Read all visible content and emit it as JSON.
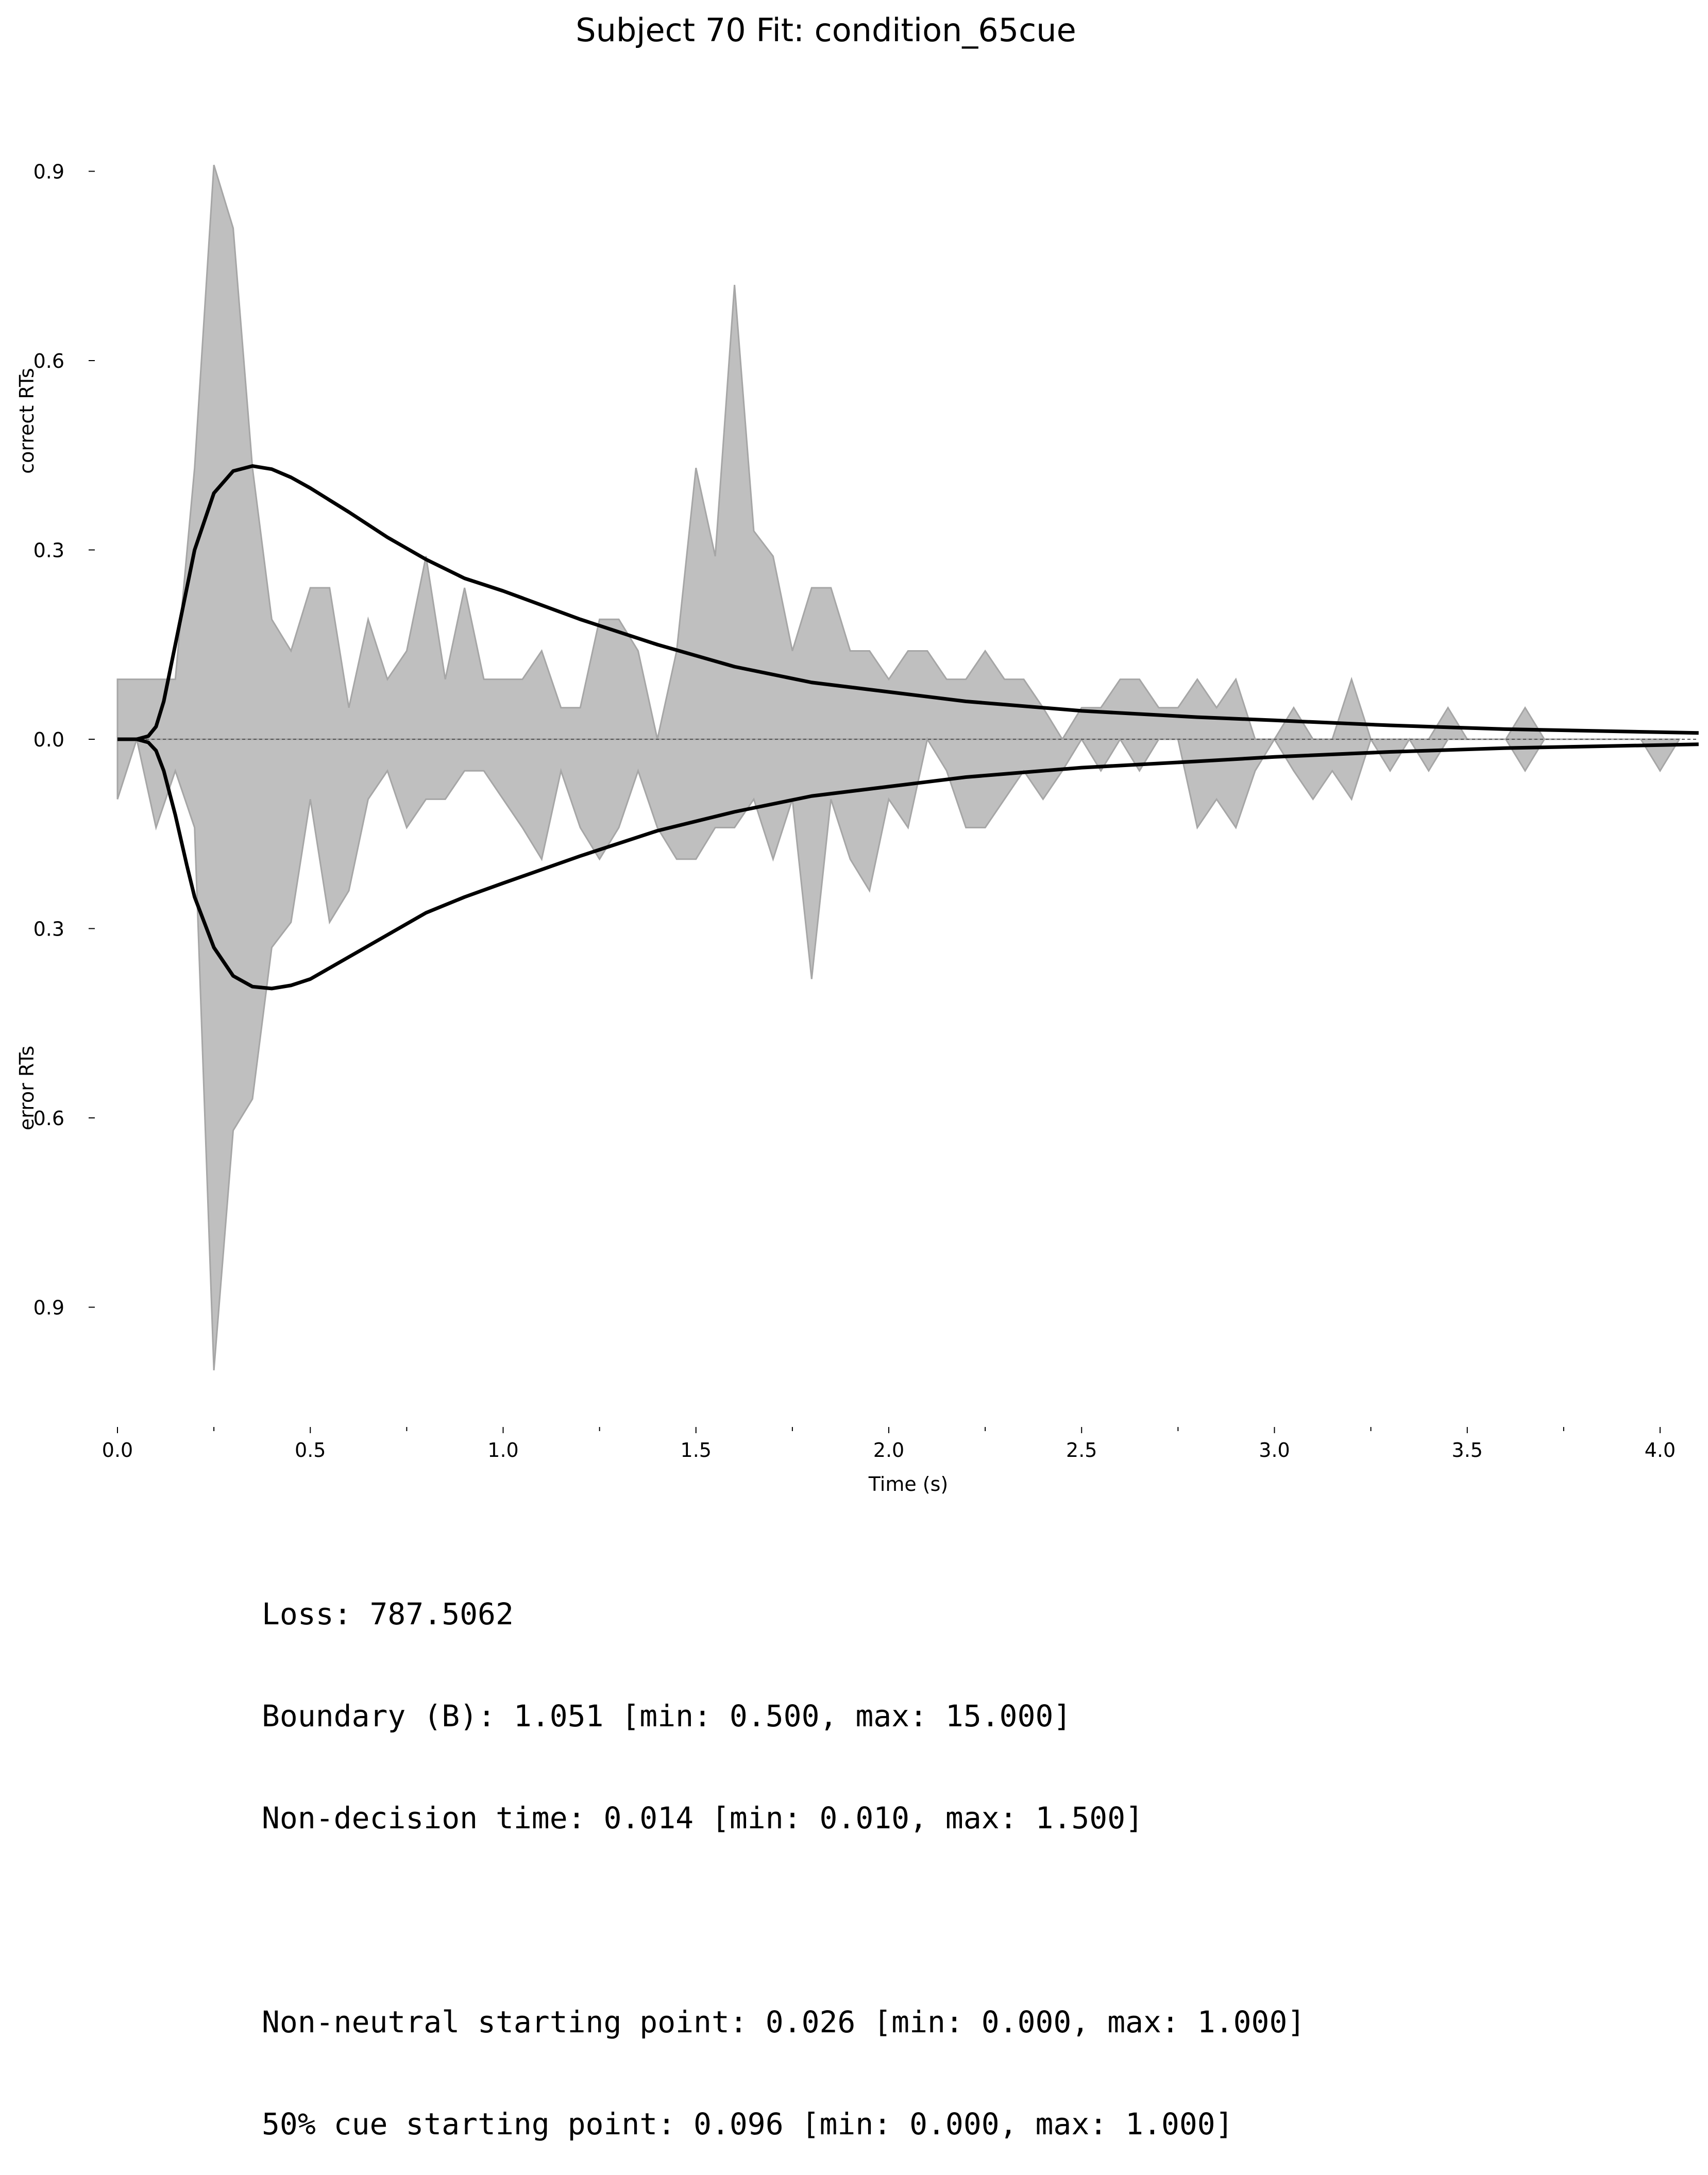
{
  "chart_data": {
    "type": "area",
    "title": "Subject 70 Fit: condition_65cue",
    "xlabel": "Time (s)",
    "ylabel_top": "correct RTs",
    "ylabel_bottom": "error RTs",
    "xlim": [
      0.0,
      4.1
    ],
    "ylim": [
      -1.08,
      1.05
    ],
    "x_tick_values": [
      0.0,
      0.5,
      1.0,
      1.5,
      2.0,
      2.5,
      3.0,
      3.5,
      4.0
    ],
    "x_tick_labels": [
      "0.0",
      "0.5",
      "1.0",
      "1.5",
      "2.0",
      "2.5",
      "3.0",
      "3.5",
      "4.0"
    ],
    "x_minor_ticks": [
      0.25,
      0.75,
      1.25,
      1.75,
      2.25,
      2.75,
      3.25,
      3.75
    ],
    "y_tick_values": [
      0.9,
      0.6,
      0.3,
      0.0,
      -0.3,
      -0.6,
      -0.9
    ],
    "y_tick_labels": [
      "0.9",
      "0.6",
      "0.3",
      "0.0",
      "0.3",
      "0.6",
      "0.9"
    ],
    "grid": false,
    "colors": {
      "histogram": "#bfbfbf",
      "histogram_edge": "#a6a6a6",
      "model": "#000000",
      "zero_line": "#555555"
    },
    "series": [
      {
        "name": "correct RT histogram",
        "x": [
          0.0,
          0.05,
          0.1,
          0.15,
          0.2,
          0.25,
          0.3,
          0.35,
          0.4,
          0.45,
          0.5,
          0.55,
          0.6,
          0.65,
          0.7,
          0.75,
          0.8,
          0.85,
          0.9,
          0.95,
          1.0,
          1.05,
          1.1,
          1.15,
          1.2,
          1.25,
          1.3,
          1.35,
          1.4,
          1.45,
          1.5,
          1.55,
          1.6,
          1.65,
          1.7,
          1.75,
          1.8,
          1.85,
          1.9,
          1.95,
          2.0,
          2.05,
          2.1,
          2.15,
          2.2,
          2.25,
          2.3,
          2.35,
          2.4,
          2.45,
          2.5,
          2.55,
          2.6,
          2.65,
          2.7,
          2.75,
          2.8,
          2.85,
          2.9,
          2.95,
          3.0,
          3.05,
          3.1,
          3.15,
          3.2,
          3.25,
          3.3,
          3.35,
          3.4,
          3.45,
          3.5,
          3.55,
          3.6,
          3.65,
          3.7,
          3.75,
          3.8,
          3.85,
          3.9,
          3.95,
          4.0,
          4.05
        ],
        "values": [
          0.095,
          0.095,
          0.095,
          0.095,
          0.43,
          0.91,
          0.81,
          0.43,
          0.19,
          0.14,
          0.24,
          0.24,
          0.05,
          0.19,
          0.095,
          0.14,
          0.29,
          0.095,
          0.24,
          0.095,
          0.095,
          0.095,
          0.14,
          0.05,
          0.05,
          0.19,
          0.19,
          0.14,
          0.0,
          0.14,
          0.43,
          0.29,
          0.72,
          0.33,
          0.29,
          0.14,
          0.24,
          0.24,
          0.14,
          0.14,
          0.095,
          0.14,
          0.14,
          0.095,
          0.095,
          0.14,
          0.095,
          0.095,
          0.05,
          0.0,
          0.05,
          0.05,
          0.095,
          0.095,
          0.05,
          0.05,
          0.095,
          0.05,
          0.095,
          0.0,
          0.0,
          0.05,
          0.0,
          0.0,
          0.095,
          0.0,
          0.0,
          0.0,
          0.0,
          0.05,
          0.0,
          0.0,
          0.0,
          0.05,
          0.0,
          0.0,
          0.0,
          0.0,
          0.0,
          0.0,
          0.0,
          0.0
        ]
      },
      {
        "name": "error RT histogram",
        "x": [
          0.0,
          0.05,
          0.1,
          0.15,
          0.2,
          0.25,
          0.3,
          0.35,
          0.4,
          0.45,
          0.5,
          0.55,
          0.6,
          0.65,
          0.7,
          0.75,
          0.8,
          0.85,
          0.9,
          0.95,
          1.0,
          1.05,
          1.1,
          1.15,
          1.2,
          1.25,
          1.3,
          1.35,
          1.4,
          1.45,
          1.5,
          1.55,
          1.6,
          1.65,
          1.7,
          1.75,
          1.8,
          1.85,
          1.9,
          1.95,
          2.0,
          2.05,
          2.1,
          2.15,
          2.2,
          2.25,
          2.3,
          2.35,
          2.4,
          2.45,
          2.5,
          2.55,
          2.6,
          2.65,
          2.7,
          2.75,
          2.8,
          2.85,
          2.9,
          2.95,
          3.0,
          3.05,
          3.1,
          3.15,
          3.2,
          3.25,
          3.3,
          3.35,
          3.4,
          3.45,
          3.5,
          3.55,
          3.6,
          3.65,
          3.7,
          3.75,
          3.8,
          3.85,
          3.9,
          3.95,
          4.0,
          4.05
        ],
        "values": [
          -0.095,
          0.0,
          -0.14,
          -0.05,
          -0.14,
          -1.0,
          -0.62,
          -0.57,
          -0.33,
          -0.29,
          -0.095,
          -0.29,
          -0.24,
          -0.095,
          -0.05,
          -0.14,
          -0.095,
          -0.095,
          -0.05,
          -0.05,
          -0.095,
          -0.14,
          -0.19,
          -0.05,
          -0.14,
          -0.19,
          -0.14,
          -0.05,
          -0.14,
          -0.19,
          -0.19,
          -0.14,
          -0.14,
          -0.095,
          -0.19,
          -0.095,
          -0.38,
          -0.095,
          -0.19,
          -0.24,
          -0.095,
          -0.14,
          0.0,
          -0.05,
          -0.14,
          -0.14,
          -0.095,
          -0.05,
          -0.095,
          -0.05,
          0.0,
          -0.05,
          0.0,
          -0.05,
          0.0,
          0.0,
          -0.14,
          -0.095,
          -0.14,
          -0.05,
          0.0,
          -0.05,
          -0.095,
          -0.05,
          -0.095,
          0.0,
          -0.05,
          0.0,
          -0.05,
          0.0,
          0.0,
          0.0,
          0.0,
          -0.05,
          0.0,
          0.0,
          0.0,
          0.0,
          0.0,
          0.0,
          -0.05,
          0.0
        ]
      },
      {
        "name": "model correct density",
        "x": [
          0.0,
          0.05,
          0.08,
          0.1,
          0.12,
          0.15,
          0.18,
          0.2,
          0.25,
          0.3,
          0.35,
          0.4,
          0.45,
          0.5,
          0.6,
          0.7,
          0.8,
          0.9,
          1.0,
          1.2,
          1.4,
          1.6,
          1.8,
          2.0,
          2.2,
          2.5,
          2.8,
          3.0,
          3.3,
          3.6,
          4.1
        ],
        "values": [
          0.0,
          0.0,
          0.005,
          0.02,
          0.06,
          0.15,
          0.24,
          0.3,
          0.39,
          0.425,
          0.433,
          0.428,
          0.415,
          0.398,
          0.36,
          0.32,
          0.285,
          0.255,
          0.235,
          0.19,
          0.15,
          0.115,
          0.09,
          0.075,
          0.06,
          0.045,
          0.035,
          0.03,
          0.022,
          0.016,
          0.01
        ]
      },
      {
        "name": "model error density",
        "x": [
          0.0,
          0.05,
          0.08,
          0.1,
          0.12,
          0.15,
          0.18,
          0.2,
          0.25,
          0.3,
          0.35,
          0.4,
          0.45,
          0.5,
          0.6,
          0.7,
          0.8,
          0.9,
          1.0,
          1.2,
          1.4,
          1.6,
          1.8,
          2.0,
          2.2,
          2.5,
          2.8,
          3.0,
          3.3,
          3.6,
          4.1
        ],
        "values": [
          0.0,
          0.0,
          -0.005,
          -0.018,
          -0.05,
          -0.12,
          -0.2,
          -0.25,
          -0.33,
          -0.375,
          -0.392,
          -0.395,
          -0.39,
          -0.38,
          -0.345,
          -0.31,
          -0.275,
          -0.25,
          -0.228,
          -0.185,
          -0.145,
          -0.115,
          -0.09,
          -0.075,
          -0.06,
          -0.045,
          -0.035,
          -0.028,
          -0.02,
          -0.014,
          -0.008
        ]
      }
    ]
  },
  "stats": {
    "loss": "Loss: 787.5062",
    "boundary": "Boundary (B): 1.051 [min: 0.500, max: 15.000]",
    "non_decision_time": "Non-decision time: 0.014 [min: 0.010, max: 1.500]",
    "non_neutral_start": "Non-neutral starting point: 0.026 [min: 0.000, max: 1.000]",
    "cue50_start": "50% cue starting point: 0.096 [min: 0.000, max: 1.000]"
  }
}
